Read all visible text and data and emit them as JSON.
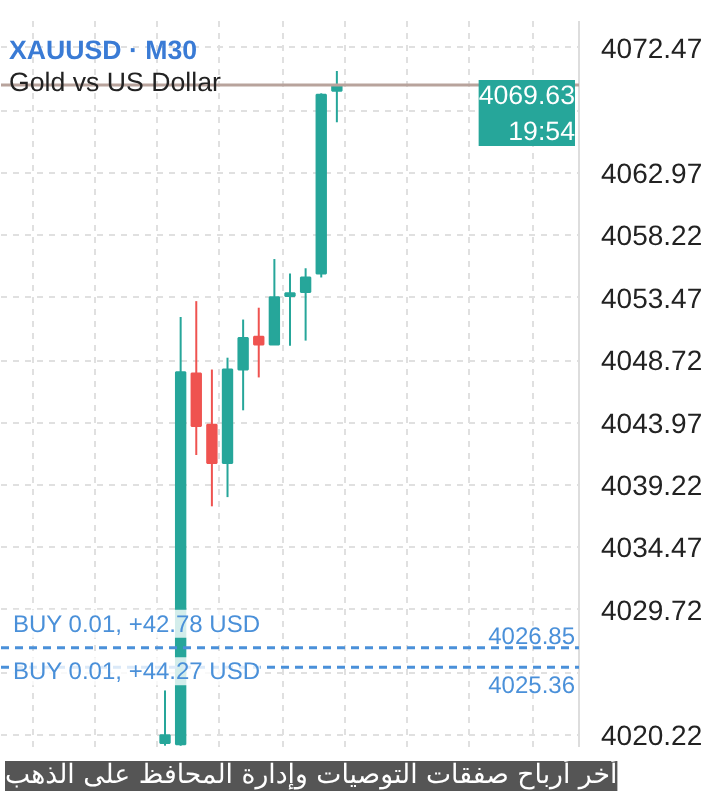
{
  "chart_data": {
    "type": "candlestick",
    "title": "XAUUSD · M30",
    "subtitle": "Gold vs US Dollar",
    "categories": [
      null,
      null,
      null,
      null,
      null,
      null,
      null,
      null,
      null,
      null,
      null,
      null,
      null,
      null,
      null,
      null,
      null,
      null,
      null,
      null,
      null,
      null,
      null,
      null,
      null,
      null,
      null,
      null,
      null,
      null,
      null,
      null,
      null,
      null,
      null,
      null,
      null
    ],
    "ohlc": [
      null,
      null,
      null,
      null,
      null,
      null,
      null,
      null,
      null,
      null,
      [
        4019.6,
        4023.6,
        4019.4,
        4020.2
      ],
      [
        4019.5,
        4052.0,
        4019.4,
        4047.8
      ],
      [
        4047.7,
        4053.2,
        4041.5,
        4043.7
      ],
      [
        4043.8,
        4048.0,
        4037.6,
        4040.9
      ],
      [
        4040.9,
        4048.9,
        4038.3,
        4048.0
      ],
      [
        4048.0,
        4051.8,
        4044.9,
        4050.4
      ],
      [
        4050.5,
        4052.7,
        4047.4,
        4049.9
      ],
      [
        4049.9,
        4056.4,
        4049.9,
        4053.5
      ],
      [
        4053.6,
        4055.3,
        4049.8,
        4053.8
      ],
      [
        4053.9,
        4055.7,
        4050.2,
        4055.0
      ],
      [
        4055.3,
        4069.0,
        4055.0,
        4068.9
      ],
      [
        4069.2,
        4070.7,
        4066.8,
        4069.6
      ],
      null,
      null,
      null,
      null,
      null,
      null,
      null,
      null,
      null,
      null,
      null,
      null,
      null,
      null,
      null
    ],
    "colors": [
      null,
      null,
      null,
      null,
      null,
      null,
      null,
      null,
      null,
      null,
      "#26a69a",
      "#26a69a",
      "#ef5350",
      "#ef5350",
      "#26a69a",
      "#26a69a",
      "#ef5350",
      "#26a69a",
      "#26a69a",
      "#26a69a",
      "#26a69a",
      "#26a69a",
      null,
      null,
      null,
      null,
      null,
      null,
      null,
      null,
      null,
      null,
      null,
      null,
      null,
      null,
      null
    ],
    "ylim": [
      4019.3,
      4074.5
    ],
    "yticks": [
      4020.22,
      {
        "value": 4024.97,
        "label": null
      },
      4029.72,
      4034.47,
      4039.22,
      4043.97,
      4048.72,
      4053.47,
      4058.22,
      4062.97,
      {
        "value": 4067.72,
        "label": null
      },
      4072.47
    ],
    "grid": true,
    "ref_lines": [
      {
        "axis": "y",
        "value": 4069.63,
        "label": "4069.63 19:54",
        "color": "#b8a39c",
        "line_style": "solid"
      },
      {
        "axis": "y",
        "value": 4026.85,
        "label": "BUY 0.01, +42.78 USD",
        "color": "#4a90d9",
        "line_style": "dashed"
      },
      {
        "axis": "y",
        "value": 4025.36,
        "label": "BUY 0.01, +44.27 USD",
        "color": "#4a90d9",
        "line_style": "dashed"
      }
    ],
    "annotations": [
      "أخر أرباح صفقات التوصيات وإدارة المحافظ على الذهب",
      {
        "text": "4026.85",
        "y": 4026.85
      },
      {
        "text": "4025.36",
        "y": 4025.36
      }
    ]
  }
}
